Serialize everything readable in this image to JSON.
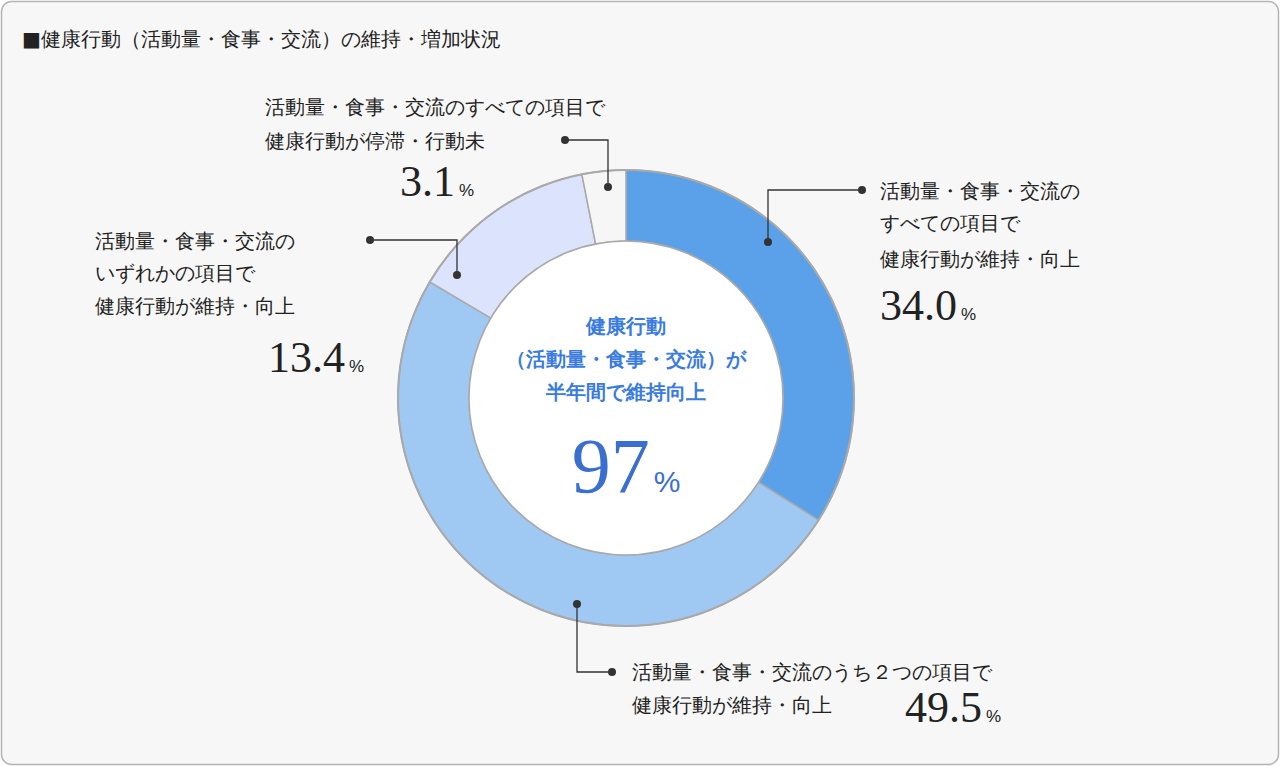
{
  "chart_data": {
    "type": "donut",
    "title": "■健康行動（活動量・食事・交流）の維持・増加状況",
    "categories": [
      "活動量・食事・交流の\nすべての項目で\n健康行動が維持・向上",
      "活動量・食事・交流のうち２つの項目で\n健康行動が維持・向上",
      "活動量・食事・交流の\nいずれかの項目で\n健康行動が維持・向上",
      "活動量・食事・交流のすべての項目で\n健康行動が停滞・行動未"
    ],
    "values": [
      34.0,
      49.5,
      13.4,
      3.1
    ],
    "value_labels": [
      "34.0%",
      "49.5%",
      "13.4%",
      "3.1%"
    ],
    "colors": [
      "#5aa1e9",
      "#9fc9f3",
      "#dce3fc",
      "#f6f6f6"
    ],
    "data_labels": true,
    "center_text": [
      "健康行動",
      "（活動量・食事・交流）が",
      "半年間で維持向上"
    ],
    "center_value_label": "97%"
  }
}
